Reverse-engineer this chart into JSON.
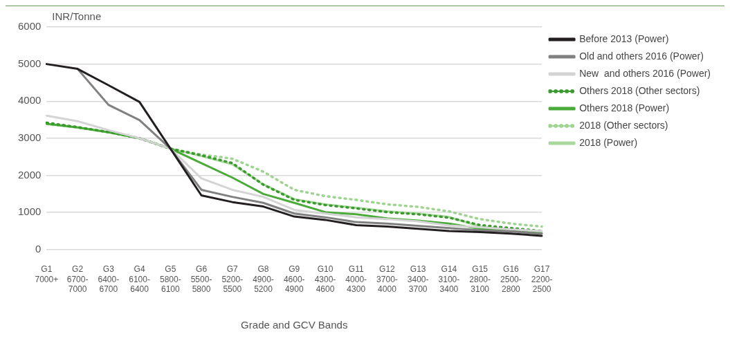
{
  "chart_data": {
    "type": "line",
    "ylabel": "INR/Tonne",
    "xlabel": "Grade and GCV Bands",
    "categories": [
      "G1\n7000+",
      "G2\n6700-\n7000",
      "G3\n6400-\n6700",
      "G4\n6100-\n6400",
      "G5\n5800-\n6100",
      "G6\n5500-\n5800",
      "G7\n5200-\n5500",
      "G8\n4900-\n5200",
      "G9\n4600-\n4900",
      "G10\n4300-\n4600",
      "G11\n4000-\n4300",
      "G12\n3700-\n4000",
      "G13\n3400-\n3700",
      "G14\n3100-\n3400",
      "G15\n2800-\n3100",
      "G16\n2500-\n2800",
      "G17\n2200-\n2500"
    ],
    "ylim": [
      0,
      6000
    ],
    "yticks": [
      0,
      1000,
      2000,
      3000,
      4000,
      5000,
      6000
    ],
    "grid": "y",
    "legend": "top right",
    "marker": "none",
    "series": [
      {
        "name": "Before 2013 (Power)",
        "color": "#231f20",
        "line_style": "solid",
        "values": [
          5000,
          4870,
          4430,
          3980,
          2720,
          1460,
          1280,
          1160,
          890,
          800,
          660,
          620,
          560,
          500,
          470,
          430,
          370
        ]
      },
      {
        "name": "Old and others 2016 (Power)",
        "color": "#808080",
        "line_style": "solid",
        "values": [
          null,
          4870,
          3900,
          3490,
          2720,
          1610,
          1420,
          1260,
          970,
          870,
          740,
          700,
          640,
          580,
          520,
          490,
          430
        ]
      },
      {
        "name": "New  and others 2016 (Power)",
        "color": "#d4d4d4",
        "line_style": "solid",
        "values": [
          3610,
          3460,
          3220,
          3000,
          2720,
          1920,
          1610,
          1420,
          1070,
          970,
          870,
          820,
          760,
          650,
          600,
          540,
          500
        ]
      },
      {
        "name": "Others 2018 (Other sectors)",
        "color": "#3a9a2e",
        "line_style": "dotted",
        "values": [
          3420,
          3300,
          3170,
          3000,
          2720,
          2540,
          2330,
          1750,
          1340,
          1200,
          1110,
          1010,
          950,
          860,
          660,
          580,
          500
        ]
      },
      {
        "name": "Others 2018 (Power)",
        "color": "#4aab3a",
        "line_style": "solid",
        "values": [
          3390,
          3290,
          3160,
          3000,
          2720,
          2330,
          1940,
          1500,
          1260,
          1010,
          950,
          840,
          780,
          700,
          560,
          500,
          430
        ]
      },
      {
        "name": "2018 (Other sectors)",
        "color": "#9fd390",
        "line_style": "dotted",
        "values": [
          3390,
          3290,
          3160,
          3000,
          2720,
          2560,
          2450,
          2100,
          1610,
          1440,
          1340,
          1220,
          1150,
          1030,
          820,
          700,
          620
        ]
      },
      {
        "name": "2018 (Power)",
        "color": "#a8d89c",
        "line_style": "solid",
        "values": [
          3390,
          3290,
          3160,
          3000,
          2720,
          2520,
          2300,
          1760,
          1360,
          1220,
          1130,
          1030,
          970,
          880,
          620,
          540,
          470
        ]
      }
    ]
  }
}
